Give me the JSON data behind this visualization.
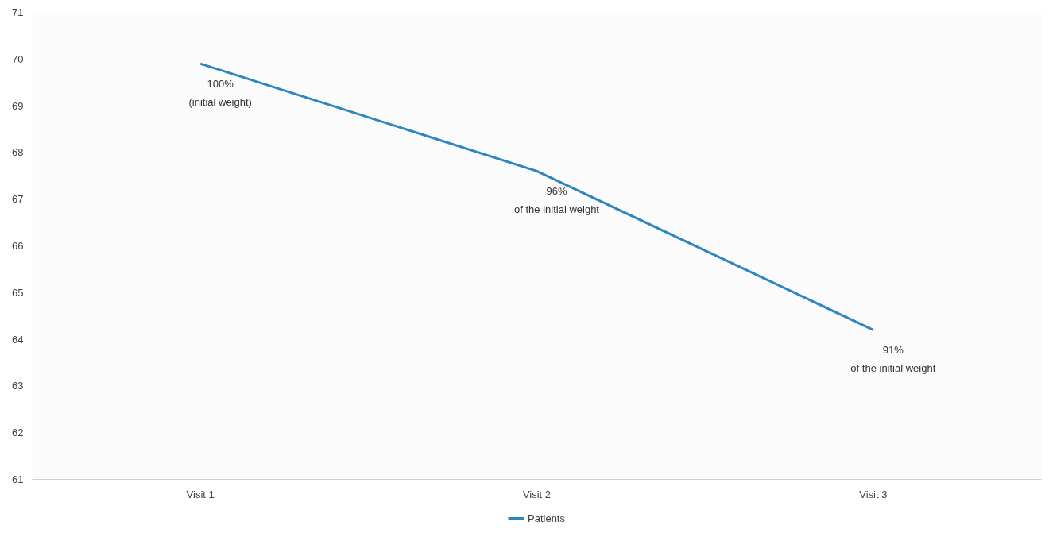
{
  "chart_data": {
    "type": "line",
    "categories": [
      "Visit 1",
      "Visit 2",
      "Visit 3"
    ],
    "series": [
      {
        "name": "Patients",
        "color": "#2e86c1",
        "values": [
          69.9,
          67.6,
          64.2
        ]
      }
    ],
    "ylim": [
      61,
      71
    ],
    "yticks": [
      61,
      62,
      63,
      64,
      65,
      66,
      67,
      68,
      69,
      70,
      71
    ],
    "grid": false,
    "legend": "bottom",
    "marker": "none",
    "line_style": "solid",
    "annotations": [
      {
        "text": "100%\n(initial weight)",
        "x": "Visit 1",
        "y": 69.9
      },
      {
        "text": "96%\nof the initial weight",
        "x": "Visit 2",
        "y": 67.6
      },
      {
        "text": "91%\nof the initial weight",
        "x": "Visit 3",
        "y": 64.2
      }
    ]
  }
}
